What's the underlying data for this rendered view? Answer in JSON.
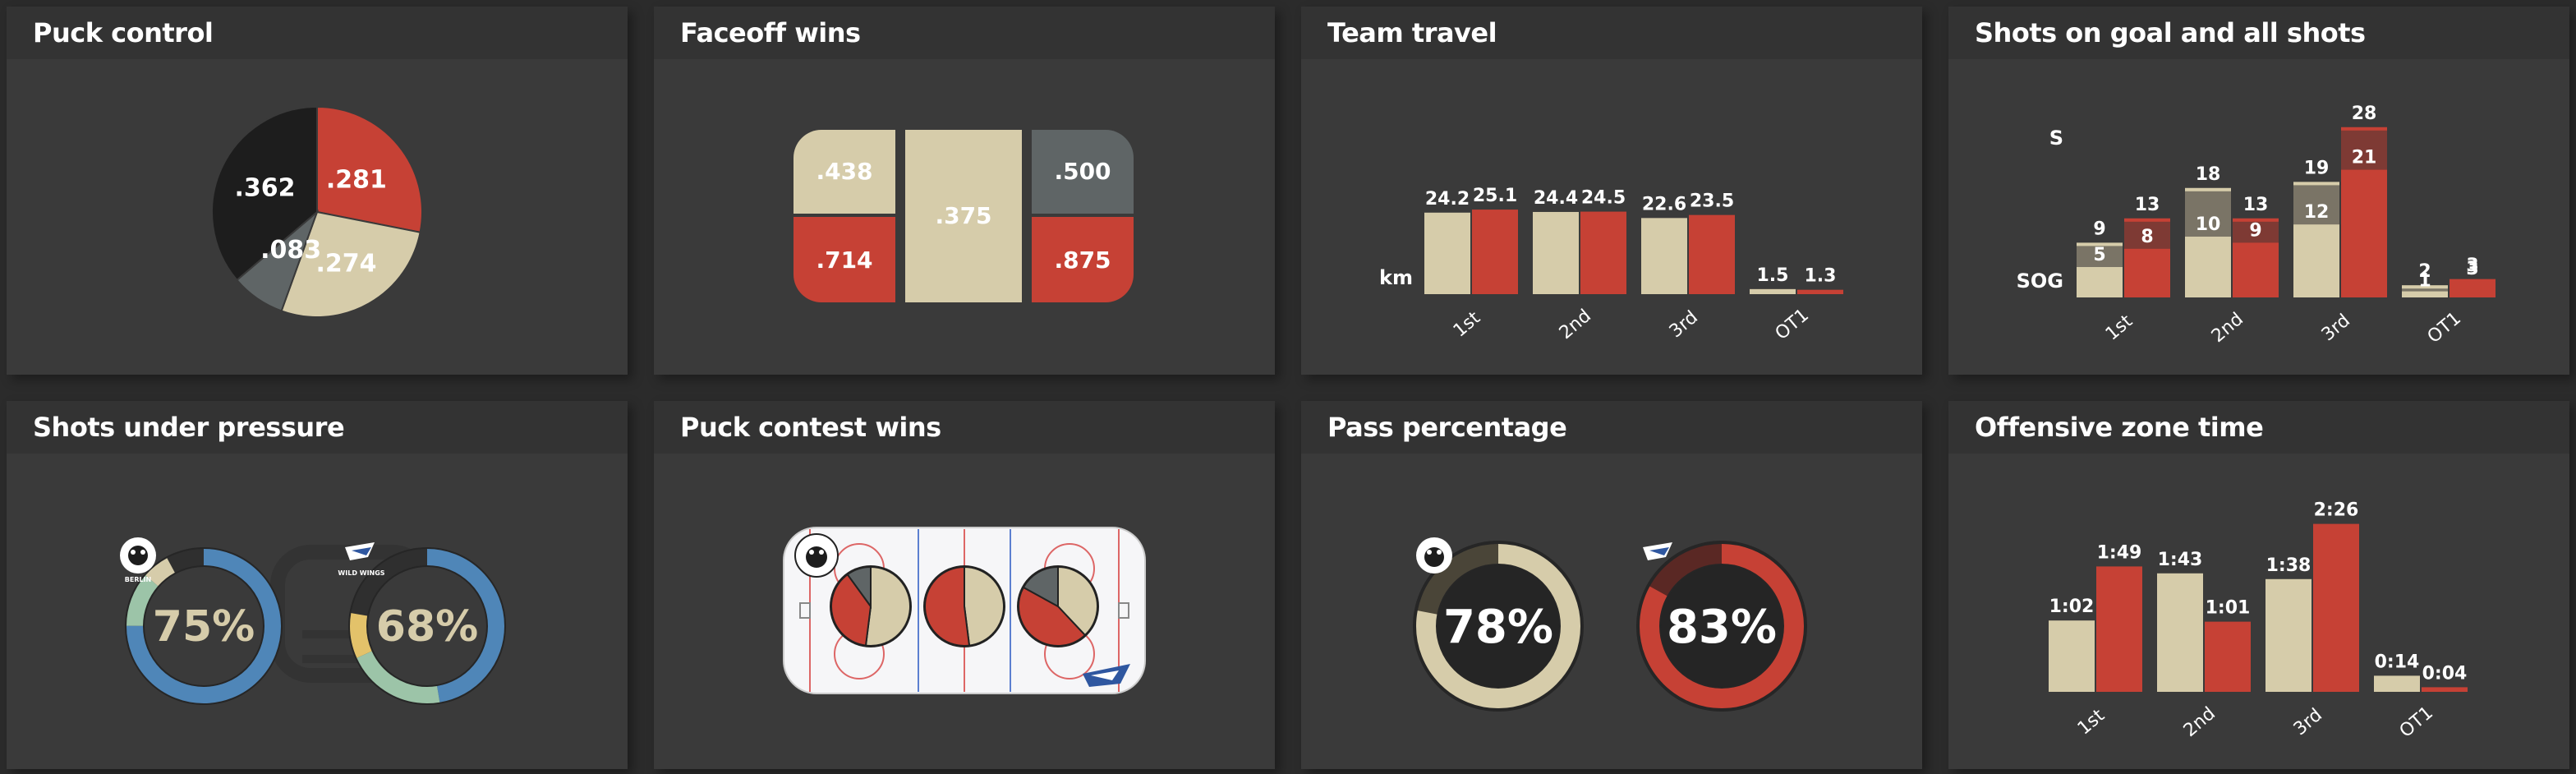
{
  "colors": {
    "home": "#d6ccaa",
    "away": "#c64135",
    "dark": "#1d1d1d",
    "grey": "#5f6566",
    "blue": "#4f86b8",
    "track": "#2a2a2a"
  },
  "cards": {
    "puck_control": {
      "title": "Puck control"
    },
    "faceoff_wins": {
      "title": "Faceoff wins"
    },
    "team_travel": {
      "title": "Team travel"
    },
    "shots": {
      "title": "Shots on goal and all shots"
    },
    "shots_pressure": {
      "title": "Shots under pressure"
    },
    "puck_contest": {
      "title": "Puck contest wins"
    },
    "pass_pct": {
      "title": "Pass percentage"
    },
    "oz_time": {
      "title": "Offensive zone time"
    }
  },
  "puck_control": {
    "chart_data": {
      "type": "pie",
      "slices": [
        {
          "label": ".281",
          "value": 0.281,
          "color": "away"
        },
        {
          "label": ".274",
          "value": 0.274,
          "color": "home"
        },
        {
          "label": ".083",
          "value": 0.083,
          "color": "grey"
        },
        {
          "label": ".362",
          "value": 0.362,
          "color": "dark"
        }
      ]
    }
  },
  "faceoff_wins": {
    "cells": {
      "home_left": ".438",
      "away_left": ".714",
      "center": ".375",
      "grey_right": ".500",
      "away_right": ".875"
    }
  },
  "team_travel": {
    "unit_label": "km",
    "chart_data": {
      "type": "bar",
      "categories": [
        "1st",
        "2nd",
        "3rd",
        "OT1"
      ],
      "series": [
        {
          "values": [
            24.2,
            24.4,
            22.6,
            1.5
          ],
          "labels": [
            "24.2",
            "24.4",
            "22.6",
            "1.5"
          ],
          "color": "home"
        },
        {
          "values": [
            25.1,
            24.5,
            23.5,
            1.3
          ],
          "labels": [
            "25.1",
            "24.5",
            "23.5",
            "1.3"
          ],
          "color": "away"
        }
      ]
    }
  },
  "shots": {
    "label_s": "S",
    "label_sog": "SOG",
    "chart_data": {
      "type": "bar",
      "categories": [
        "1st",
        "2nd",
        "3rd",
        "OT1"
      ],
      "series": [
        {
          "shots": [
            9,
            18,
            19,
            2
          ],
          "sog": [
            5,
            10,
            12,
            1
          ],
          "color": "home"
        },
        {
          "shots": [
            13,
            13,
            28,
            3
          ],
          "sog": [
            8,
            9,
            21,
            3
          ],
          "color": "away"
        }
      ]
    }
  },
  "shots_pressure": {
    "home": {
      "value": "75%",
      "team": "BERLIN"
    },
    "away": {
      "value": "68%",
      "team": "WILD WINGS"
    }
  },
  "puck_contest": {
    "chart_data": {
      "type": "pie",
      "pies": [
        {
          "home": 0.52,
          "away": 0.38,
          "grey": 0.1
        },
        {
          "home": 0.48,
          "away": 0.52,
          "grey": 0.0
        },
        {
          "home": 0.38,
          "away": 0.45,
          "grey": 0.17
        }
      ]
    }
  },
  "pass_pct": {
    "home": {
      "value": "78%",
      "fraction": 0.78
    },
    "away": {
      "value": "83%",
      "fraction": 0.83
    }
  },
  "oz_time": {
    "chart_data": {
      "type": "bar",
      "categories": [
        "1st",
        "2nd",
        "3rd",
        "OT1"
      ],
      "series": [
        {
          "values": [
            62,
            103,
            98,
            14
          ],
          "labels": [
            "1:02",
            "1:43",
            "1:38",
            "0:14"
          ],
          "color": "home"
        },
        {
          "values": [
            109,
            61,
            146,
            4
          ],
          "labels": [
            "1:49",
            "1:01",
            "2:26",
            "0:04"
          ],
          "color": "away"
        }
      ]
    }
  }
}
